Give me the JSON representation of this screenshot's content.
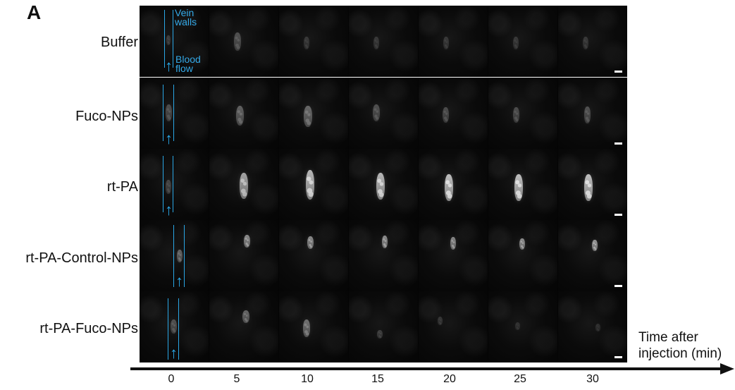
{
  "figure": {
    "panel_label": "A",
    "annotations": {
      "vein_walls": "Vein\nwalls",
      "blood_flow": "Blood\nflow"
    },
    "time_axis": {
      "label": "Time after\ninjection (min)",
      "ticks": [
        "0",
        "5",
        "10",
        "15",
        "20",
        "25",
        "30"
      ]
    },
    "rows": [
      {
        "label": "Buffer",
        "clot_intensity": [
          0.2,
          0.3,
          0.18,
          0.18,
          0.18,
          0.18,
          0.18
        ]
      },
      {
        "label": "Fuco-NPs",
        "clot_intensity": [
          0.28,
          0.38,
          0.42,
          0.3,
          0.28,
          0.28,
          0.3
        ]
      },
      {
        "label": "rt-PA",
        "clot_intensity": [
          0.24,
          0.72,
          0.82,
          0.82,
          0.86,
          0.86,
          0.86
        ]
      },
      {
        "label": "rt-PA-Control-NPs",
        "clot_intensity": [
          0.4,
          0.6,
          0.6,
          0.62,
          0.58,
          0.62,
          0.66
        ]
      },
      {
        "label": "rt-PA-Fuco-NPs",
        "clot_intensity": [
          0.3,
          0.42,
          0.46,
          0.22,
          0.18,
          0.14,
          0.14
        ]
      }
    ],
    "colors": {
      "annotation_blue": "#2aa7e6",
      "axis_black": "#111111",
      "background_white": "#ffffff",
      "image_black": "#040404"
    }
  }
}
